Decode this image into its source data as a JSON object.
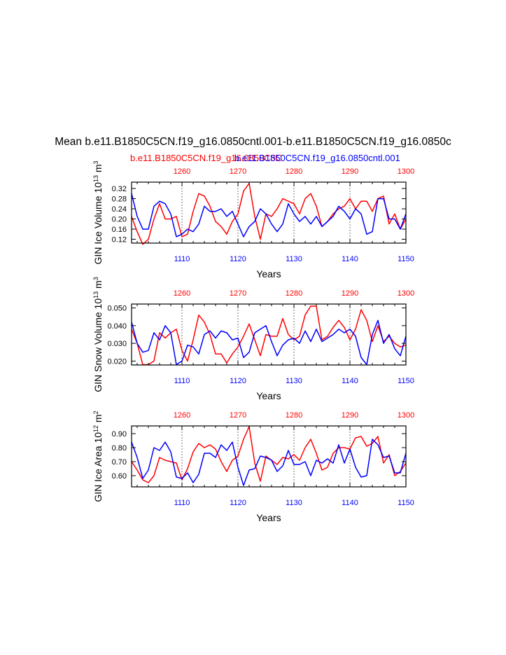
{
  "main_title": "Mean b.e11.B1850C5CN.f19_g16.0850cntl.001-b.e11.B1850C5CN.f19_g16.0850c",
  "subtitle_red": "b.e11.B1850C5CN.f19_g16.0850C5C",
  "subtitle_blue": "b.e11.B1850C5CN.f19_g16.0850cntl.001",
  "colors": {
    "red": "#ff0000",
    "blue": "#0000ff",
    "black": "#000000",
    "grid": "#777777"
  },
  "chart_data": [
    {
      "type": "line",
      "title": "GIN Ice Volume",
      "ylabel": "GIN Ice Volume",
      "ylabel_exp": "13",
      "ylabel_unit": "m",
      "ylabel_unit_exp": "3",
      "xlabel": "Years",
      "xlim_bottom": [
        1101,
        1150
      ],
      "xlim_top": [
        1251,
        1300
      ],
      "ylim": [
        0.105,
        0.345
      ],
      "yticks": [
        0.12,
        0.16,
        0.2,
        0.24,
        0.28,
        0.32
      ],
      "ytick_labels": [
        "0.12",
        "0.16",
        "0.20",
        "0.24",
        "0.28",
        "0.32"
      ],
      "xticks_bottom": [
        "1110",
        "1120",
        "1130",
        "1140",
        "1150"
      ],
      "xticks_top": [
        "1260",
        "1270",
        "1280",
        "1290",
        "1300"
      ],
      "series": [
        {
          "name": "b.e11.B1850C5CN.f19_g16.0850C5C",
          "color": "red",
          "axis": "top",
          "x": [
            1251,
            1252,
            1253,
            1254,
            1255,
            1256,
            1257,
            1258,
            1259,
            1260,
            1261,
            1262,
            1263,
            1264,
            1265,
            1266,
            1267,
            1268,
            1269,
            1270,
            1271,
            1272,
            1273,
            1274,
            1275,
            1276,
            1277,
            1278,
            1279,
            1280,
            1281,
            1282,
            1283,
            1284,
            1285,
            1286,
            1287,
            1288,
            1289,
            1290,
            1291,
            1292,
            1293,
            1294,
            1295,
            1296,
            1297,
            1298,
            1299,
            1300
          ],
          "values": [
            0.21,
            0.15,
            0.1,
            0.12,
            0.2,
            0.26,
            0.2,
            0.2,
            0.21,
            0.13,
            0.14,
            0.23,
            0.3,
            0.29,
            0.25,
            0.19,
            0.17,
            0.14,
            0.19,
            0.22,
            0.31,
            0.34,
            0.21,
            0.12,
            0.22,
            0.21,
            0.24,
            0.28,
            0.27,
            0.26,
            0.22,
            0.28,
            0.3,
            0.25,
            0.17,
            0.19,
            0.22,
            0.24,
            0.25,
            0.28,
            0.24,
            0.27,
            0.27,
            0.23,
            0.28,
            0.29,
            0.18,
            0.22,
            0.16,
            0.2
          ]
        },
        {
          "name": "b.e11.B1850C5CN.f19_g16.0850cntl.001",
          "color": "blue",
          "axis": "bottom",
          "x": [
            1101,
            1102,
            1103,
            1104,
            1105,
            1106,
            1107,
            1108,
            1109,
            1110,
            1111,
            1112,
            1113,
            1114,
            1115,
            1116,
            1117,
            1118,
            1119,
            1120,
            1121,
            1122,
            1123,
            1124,
            1125,
            1126,
            1127,
            1128,
            1129,
            1130,
            1131,
            1132,
            1133,
            1134,
            1135,
            1136,
            1137,
            1138,
            1139,
            1140,
            1141,
            1142,
            1143,
            1144,
            1145,
            1146,
            1147,
            1148,
            1149,
            1150
          ],
          "values": [
            0.3,
            0.21,
            0.16,
            0.16,
            0.25,
            0.27,
            0.26,
            0.22,
            0.13,
            0.14,
            0.16,
            0.15,
            0.18,
            0.25,
            0.23,
            0.23,
            0.24,
            0.21,
            0.23,
            0.18,
            0.13,
            0.17,
            0.19,
            0.24,
            0.22,
            0.18,
            0.15,
            0.18,
            0.26,
            0.22,
            0.19,
            0.21,
            0.18,
            0.21,
            0.17,
            0.19,
            0.21,
            0.25,
            0.23,
            0.2,
            0.24,
            0.22,
            0.14,
            0.15,
            0.28,
            0.28,
            0.2,
            0.2,
            0.16,
            0.22
          ]
        }
      ]
    },
    {
      "type": "line",
      "title": "GIN Snow Volume",
      "ylabel": "GIN Snow Volume",
      "ylabel_exp": "13",
      "ylabel_unit": "m",
      "ylabel_unit_exp": "3",
      "xlabel": "Years",
      "xlim_bottom": [
        1101,
        1150
      ],
      "xlim_top": [
        1251,
        1300
      ],
      "ylim": [
        0.0178,
        0.0522
      ],
      "yticks": [
        0.02,
        0.03,
        0.04,
        0.05
      ],
      "ytick_labels": [
        "0.020",
        "0.030",
        "0.040",
        "0.050"
      ],
      "xticks_bottom": [
        "1110",
        "1120",
        "1130",
        "1140",
        "1150"
      ],
      "xticks_top": [
        "1260",
        "1270",
        "1280",
        "1290",
        "1300"
      ],
      "series": [
        {
          "name": "b.e11.B1850C5CN.f19_g16.0850C5C",
          "color": "red",
          "axis": "top",
          "x": [
            1251,
            1252,
            1253,
            1254,
            1255,
            1256,
            1257,
            1258,
            1259,
            1260,
            1261,
            1262,
            1263,
            1264,
            1265,
            1266,
            1267,
            1268,
            1269,
            1270,
            1271,
            1272,
            1273,
            1274,
            1275,
            1276,
            1277,
            1278,
            1279,
            1280,
            1281,
            1282,
            1283,
            1284,
            1285,
            1286,
            1287,
            1288,
            1289,
            1290,
            1291,
            1292,
            1293,
            1294,
            1295,
            1296,
            1297,
            1298,
            1299,
            1300
          ],
          "values": [
            0.038,
            0.03,
            0.018,
            0.018,
            0.02,
            0.036,
            0.033,
            0.036,
            0.038,
            0.026,
            0.02,
            0.032,
            0.046,
            0.042,
            0.035,
            0.024,
            0.024,
            0.019,
            0.024,
            0.028,
            0.034,
            0.041,
            0.032,
            0.023,
            0.035,
            0.034,
            0.034,
            0.044,
            0.035,
            0.032,
            0.034,
            0.046,
            0.051,
            0.051,
            0.032,
            0.034,
            0.039,
            0.043,
            0.039,
            0.032,
            0.038,
            0.049,
            0.043,
            0.031,
            0.04,
            0.031,
            0.034,
            0.03,
            0.028,
            0.029
          ]
        },
        {
          "name": "b.e11.B1850C5CN.f19_g16.0850cntl.001",
          "color": "blue",
          "axis": "bottom",
          "x": [
            1101,
            1102,
            1103,
            1104,
            1105,
            1106,
            1107,
            1108,
            1109,
            1110,
            1111,
            1112,
            1113,
            1114,
            1115,
            1116,
            1117,
            1118,
            1119,
            1120,
            1121,
            1122,
            1123,
            1124,
            1125,
            1126,
            1127,
            1128,
            1129,
            1130,
            1131,
            1132,
            1133,
            1134,
            1135,
            1136,
            1137,
            1138,
            1139,
            1140,
            1141,
            1142,
            1143,
            1144,
            1145,
            1146,
            1147,
            1148,
            1149,
            1150
          ],
          "values": [
            0.042,
            0.03,
            0.025,
            0.026,
            0.036,
            0.032,
            0.04,
            0.036,
            0.018,
            0.02,
            0.029,
            0.028,
            0.024,
            0.035,
            0.037,
            0.033,
            0.037,
            0.036,
            0.032,
            0.033,
            0.022,
            0.025,
            0.036,
            0.038,
            0.04,
            0.031,
            0.023,
            0.029,
            0.032,
            0.033,
            0.03,
            0.037,
            0.031,
            0.038,
            0.031,
            0.033,
            0.035,
            0.038,
            0.036,
            0.038,
            0.034,
            0.022,
            0.018,
            0.035,
            0.043,
            0.03,
            0.035,
            0.027,
            0.023,
            0.034
          ]
        }
      ]
    },
    {
      "type": "line",
      "title": "GIN Ice Area",
      "ylabel": "GIN Ice Area",
      "ylabel_exp": "12",
      "ylabel_unit": "m",
      "ylabel_unit_exp": "2",
      "xlabel": "Years",
      "xlim_bottom": [
        1101,
        1150
      ],
      "xlim_top": [
        1251,
        1300
      ],
      "ylim": [
        0.52,
        0.955
      ],
      "yticks": [
        0.6,
        0.7,
        0.8,
        0.9
      ],
      "ytick_labels": [
        "0.60",
        "0.70",
        "0.80",
        "0.90"
      ],
      "xticks_bottom": [
        "1110",
        "1120",
        "1130",
        "1140",
        "1150"
      ],
      "xticks_top": [
        "1260",
        "1270",
        "1280",
        "1290",
        "1300"
      ],
      "series": [
        {
          "name": "b.e11.B1850C5CN.f19_g16.0850C5C",
          "color": "red",
          "axis": "top",
          "x": [
            1251,
            1252,
            1253,
            1254,
            1255,
            1256,
            1257,
            1258,
            1259,
            1260,
            1261,
            1262,
            1263,
            1264,
            1265,
            1266,
            1267,
            1268,
            1269,
            1270,
            1271,
            1272,
            1273,
            1274,
            1275,
            1276,
            1277,
            1278,
            1279,
            1280,
            1281,
            1282,
            1283,
            1284,
            1285,
            1286,
            1287,
            1288,
            1289,
            1290,
            1291,
            1292,
            1293,
            1294,
            1295,
            1296,
            1297,
            1298,
            1299,
            1300
          ],
          "values": [
            0.7,
            0.64,
            0.57,
            0.55,
            0.6,
            0.73,
            0.71,
            0.7,
            0.69,
            0.57,
            0.65,
            0.77,
            0.83,
            0.8,
            0.82,
            0.79,
            0.7,
            0.63,
            0.71,
            0.74,
            0.86,
            0.95,
            0.69,
            0.56,
            0.74,
            0.71,
            0.68,
            0.73,
            0.72,
            0.75,
            0.71,
            0.8,
            0.86,
            0.76,
            0.64,
            0.66,
            0.76,
            0.8,
            0.8,
            0.79,
            0.87,
            0.88,
            0.81,
            0.83,
            0.88,
            0.69,
            0.75,
            0.6,
            0.63,
            0.69
          ]
        },
        {
          "name": "b.e11.B1850C5CN.f19_g16.0850cntl.001",
          "color": "blue",
          "axis": "bottom",
          "x": [
            1101,
            1102,
            1103,
            1104,
            1105,
            1106,
            1107,
            1108,
            1109,
            1110,
            1111,
            1112,
            1113,
            1114,
            1115,
            1116,
            1117,
            1118,
            1119,
            1120,
            1121,
            1122,
            1123,
            1124,
            1125,
            1126,
            1127,
            1128,
            1129,
            1130,
            1131,
            1132,
            1133,
            1134,
            1135,
            1136,
            1137,
            1138,
            1139,
            1140,
            1141,
            1142,
            1143,
            1144,
            1145,
            1146,
            1147,
            1148,
            1149,
            1150
          ],
          "values": [
            0.84,
            0.73,
            0.58,
            0.64,
            0.8,
            0.78,
            0.84,
            0.77,
            0.59,
            0.58,
            0.62,
            0.55,
            0.61,
            0.76,
            0.76,
            0.73,
            0.82,
            0.78,
            0.84,
            0.66,
            0.53,
            0.64,
            0.65,
            0.74,
            0.73,
            0.71,
            0.63,
            0.67,
            0.78,
            0.68,
            0.68,
            0.7,
            0.6,
            0.71,
            0.69,
            0.72,
            0.69,
            0.82,
            0.69,
            0.79,
            0.66,
            0.59,
            0.6,
            0.86,
            0.82,
            0.73,
            0.74,
            0.62,
            0.62,
            0.76
          ]
        }
      ]
    }
  ]
}
